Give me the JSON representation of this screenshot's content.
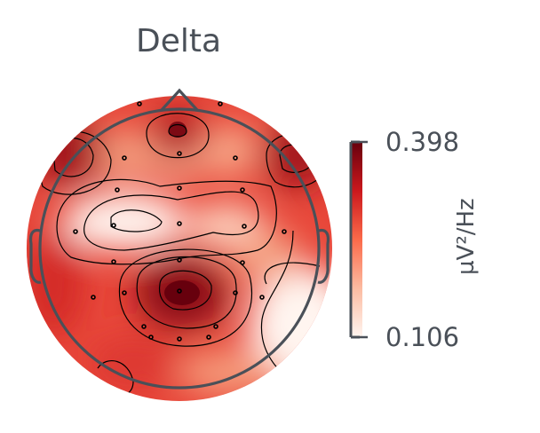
{
  "topomap": {
    "title": "Delta",
    "colorbar": {
      "max_label": "0.398",
      "min_label": "0.106",
      "unit": "µV²/Hz",
      "colormap": "Reds",
      "color_high": "#67000d",
      "color_low": "#fff5f0"
    },
    "outline_color": "#4a5058",
    "contour_color": "#000000",
    "sensor_count": 30
  }
}
